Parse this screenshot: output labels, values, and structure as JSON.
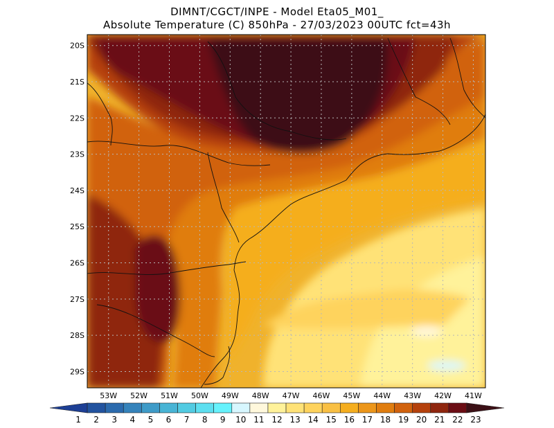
{
  "header": {
    "line1": "DIMNT/CGCT/INPE -  Model Eta05_M01_",
    "line2": "Absolute Temperature (C) 850hPa -  27/03/2023 00UTC fct=43h"
  },
  "map": {
    "lat_labels": [
      "20S",
      "21S",
      "22S",
      "23S",
      "24S",
      "25S",
      "26S",
      "27S",
      "28S",
      "29S"
    ],
    "lon_labels": [
      "53W",
      "52W",
      "51W",
      "50W",
      "49W",
      "48W",
      "47W",
      "46W",
      "45W",
      "44W",
      "43W",
      "42W",
      "41W"
    ],
    "lon_range": [
      -53.7,
      -40.6
    ],
    "lat_range": [
      -19.7,
      -29.45
    ],
    "units": "C"
  },
  "colorbar": {
    "labels": [
      "1",
      "2",
      "3",
      "4",
      "5",
      "6",
      "7",
      "8",
      "9",
      "10",
      "11",
      "12",
      "13",
      "14",
      "15",
      "16",
      "17",
      "18",
      "19",
      "20",
      "21",
      "22",
      "23"
    ],
    "colors": [
      "#1d3f95",
      "#22539f",
      "#2b6aad",
      "#3583bb",
      "#3e9bc8",
      "#48b4d5",
      "#52cbe2",
      "#5ddff0",
      "#66f2fc",
      "#d7f7ff",
      "#fff8dc",
      "#fff29a",
      "#ffe277",
      "#fed35d",
      "#f9c044",
      "#f5ae1f",
      "#ec961a",
      "#e07d0f",
      "#d1620d",
      "#b5410c",
      "#8f260e",
      "#6b0d14",
      "#3c1016"
    ]
  },
  "field": {
    "base_color": "#f0b22c",
    "zones": [
      {
        "name": "north-border",
        "color": "#8f260e"
      },
      {
        "name": "north-core",
        "color": "#6b0d14"
      },
      {
        "name": "north-max",
        "color": "#3c1016"
      },
      {
        "name": "west-border",
        "color": "#b5410c"
      },
      {
        "name": "west-belt",
        "color": "#8f260e"
      },
      {
        "name": "west-core",
        "color": "#6b0d14"
      },
      {
        "name": "coastal-band",
        "color": "#e07d0f"
      },
      {
        "name": "inland-belt",
        "color": "#d1620d"
      },
      {
        "name": "ocean-mid",
        "color": "#f5ae1f"
      },
      {
        "name": "ocean-warm",
        "color": "#fed35d"
      },
      {
        "name": "ocean-light",
        "color": "#ffe277"
      },
      {
        "name": "ocean-pale",
        "color": "#fff29a"
      },
      {
        "name": "ocean-cream",
        "color": "#fff8dc"
      },
      {
        "name": "ocean-cool",
        "color": "#d7f7ff"
      }
    ]
  }
}
